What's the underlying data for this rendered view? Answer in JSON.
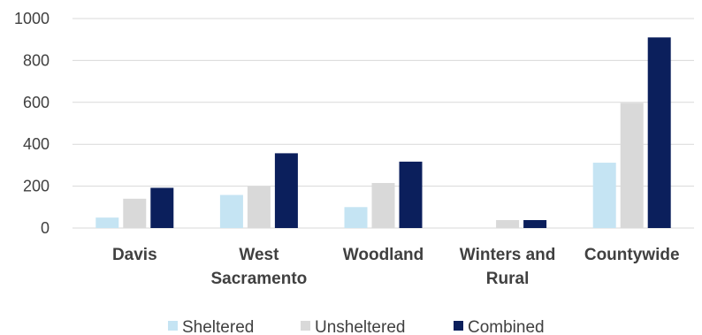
{
  "chart_data": {
    "type": "bar",
    "categories": [
      [
        "Davis"
      ],
      [
        "West",
        "Sacramento"
      ],
      [
        "Woodland"
      ],
      [
        "Winters and",
        "Rural"
      ],
      [
        "Countywide"
      ]
    ],
    "series": [
      {
        "name": "Sheltered",
        "color": "#c5e4f3",
        "values": [
          50,
          158,
          100,
          0,
          312
        ]
      },
      {
        "name": "Unsheltered",
        "color": "#d9d9d9",
        "values": [
          140,
          200,
          215,
          38,
          597
        ]
      },
      {
        "name": "Combined",
        "color": "#0b1f5c",
        "values": [
          192,
          357,
          317,
          38,
          910
        ]
      }
    ],
    "ylim": [
      0,
      1000
    ],
    "yticks": [
      0,
      200,
      400,
      600,
      800,
      1000
    ],
    "grid": true,
    "legend": "bottom"
  }
}
